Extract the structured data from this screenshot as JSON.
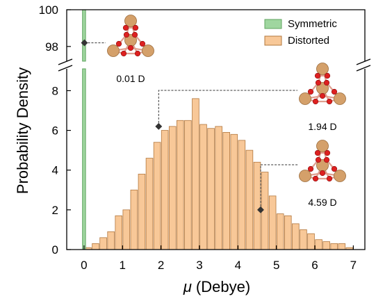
{
  "chart_data": {
    "type": "bar",
    "xlabel_symbol": "μ",
    "xlabel_unit": "(Debye)",
    "ylabel": "Probability Density",
    "xlim": [
      -0.45,
      7.3
    ],
    "xticks": [
      0,
      1,
      2,
      3,
      4,
      5,
      6,
      7
    ],
    "lower_ylim": [
      0,
      9.1
    ],
    "lower_yticks": [
      0,
      2,
      4,
      6,
      8
    ],
    "upper_ylim": [
      97.2,
      100
    ],
    "upper_yticks": [
      98,
      100
    ],
    "axis_break": true,
    "legend_position": "top-right",
    "bin_width": 0.2,
    "series": [
      {
        "name": "Symmetric",
        "color": "#9fd69f",
        "edge_color": "#5fa45f",
        "x": [
          0.0
        ],
        "values": [
          100.0
        ]
      },
      {
        "name": "Distorted",
        "color": "#f8c898",
        "edge_color": "#b2773d",
        "x": [
          0.1,
          0.3,
          0.5,
          0.7,
          0.9,
          1.1,
          1.3,
          1.5,
          1.7,
          1.9,
          2.1,
          2.3,
          2.5,
          2.7,
          2.9,
          3.1,
          3.3,
          3.5,
          3.7,
          3.9,
          4.1,
          4.3,
          4.5,
          4.7,
          4.9,
          5.1,
          5.3,
          5.5,
          5.7,
          5.9,
          6.1,
          6.3,
          6.5,
          6.7,
          6.9
        ],
        "values": [
          0.1,
          0.3,
          0.6,
          0.9,
          1.7,
          2.0,
          3.0,
          3.8,
          4.6,
          5.4,
          6.0,
          6.2,
          6.5,
          6.5,
          7.6,
          6.3,
          6.1,
          6.2,
          5.9,
          5.8,
          5.5,
          5.0,
          4.4,
          3.9,
          2.7,
          1.8,
          1.7,
          1.3,
          1.0,
          0.8,
          0.5,
          0.4,
          0.3,
          0.3,
          0.1
        ]
      }
    ],
    "annotations": [
      {
        "label": "0.01 D",
        "x": 0.01,
        "y": 98.2,
        "axis": "upper"
      },
      {
        "label": "1.94 D",
        "x": 1.94,
        "y": 6.2,
        "axis": "lower"
      },
      {
        "label": "4.59 D",
        "x": 4.59,
        "y": 2.0,
        "axis": "lower"
      }
    ],
    "atom_colors": {
      "metal": "#d4a06a",
      "oxygen": "#dd2020",
      "bond": "#e0a090"
    }
  }
}
